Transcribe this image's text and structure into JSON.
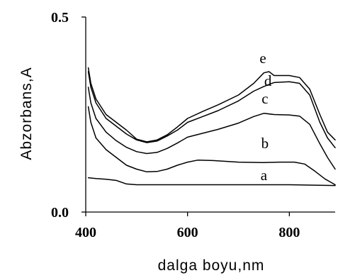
{
  "chart_data": {
    "type": "line",
    "title": "",
    "xlabel": "dalga boyu,nm",
    "ylabel": "Abzorbans,A",
    "xlim": [
      400,
      890
    ],
    "ylim": [
      0.0,
      0.5
    ],
    "x_ticks": [
      400,
      600,
      800
    ],
    "x_tick_labels": [
      "400",
      "600",
      "800"
    ],
    "y_ticks": [
      0.0,
      0.5
    ],
    "y_tick_labels": [
      "0.0",
      "0.5"
    ],
    "grid": false,
    "legend": "none",
    "series": [
      {
        "name": "a",
        "label_at": [
          750,
          0.095
        ],
        "points": [
          [
            405,
            0.088
          ],
          [
            420,
            0.086
          ],
          [
            440,
            0.084
          ],
          [
            460,
            0.081
          ],
          [
            480,
            0.072
          ],
          [
            500,
            0.07
          ],
          [
            550,
            0.07
          ],
          [
            600,
            0.07
          ],
          [
            650,
            0.07
          ],
          [
            700,
            0.07
          ],
          [
            750,
            0.07
          ],
          [
            800,
            0.07
          ],
          [
            850,
            0.069
          ],
          [
            890,
            0.068
          ]
        ]
      },
      {
        "name": "b",
        "label_at": [
          752,
          0.176
        ],
        "points": [
          [
            405,
            0.27
          ],
          [
            410,
            0.23
          ],
          [
            420,
            0.19
          ],
          [
            440,
            0.16
          ],
          [
            460,
            0.14
          ],
          [
            480,
            0.12
          ],
          [
            500,
            0.11
          ],
          [
            520,
            0.103
          ],
          [
            540,
            0.104
          ],
          [
            560,
            0.11
          ],
          [
            580,
            0.12
          ],
          [
            600,
            0.128
          ],
          [
            620,
            0.133
          ],
          [
            650,
            0.132
          ],
          [
            700,
            0.128
          ],
          [
            750,
            0.127
          ],
          [
            780,
            0.128
          ],
          [
            810,
            0.128
          ],
          [
            830,
            0.123
          ],
          [
            850,
            0.105
          ],
          [
            870,
            0.085
          ],
          [
            890,
            0.07
          ]
        ]
      },
      {
        "name": "c",
        "label_at": [
          752,
          0.291
        ],
        "points": [
          [
            405,
            0.32
          ],
          [
            410,
            0.28
          ],
          [
            420,
            0.24
          ],
          [
            440,
            0.205
          ],
          [
            460,
            0.183
          ],
          [
            480,
            0.166
          ],
          [
            500,
            0.155
          ],
          [
            520,
            0.15
          ],
          [
            540,
            0.153
          ],
          [
            560,
            0.163
          ],
          [
            580,
            0.177
          ],
          [
            600,
            0.192
          ],
          [
            630,
            0.202
          ],
          [
            660,
            0.212
          ],
          [
            700,
            0.228
          ],
          [
            730,
            0.245
          ],
          [
            750,
            0.253
          ],
          [
            770,
            0.25
          ],
          [
            800,
            0.249
          ],
          [
            820,
            0.246
          ],
          [
            840,
            0.225
          ],
          [
            860,
            0.175
          ],
          [
            875,
            0.14
          ],
          [
            890,
            0.11
          ]
        ]
      },
      {
        "name": "d",
        "label_at": [
          758,
          0.336
        ],
        "points": [
          [
            405,
            0.36
          ],
          [
            410,
            0.32
          ],
          [
            420,
            0.28
          ],
          [
            440,
            0.24
          ],
          [
            460,
            0.22
          ],
          [
            480,
            0.2
          ],
          [
            500,
            0.185
          ],
          [
            520,
            0.178
          ],
          [
            540,
            0.182
          ],
          [
            560,
            0.195
          ],
          [
            580,
            0.21
          ],
          [
            600,
            0.23
          ],
          [
            630,
            0.245
          ],
          [
            660,
            0.26
          ],
          [
            700,
            0.285
          ],
          [
            730,
            0.31
          ],
          [
            750,
            0.322
          ],
          [
            770,
            0.332
          ],
          [
            800,
            0.334
          ],
          [
            820,
            0.33
          ],
          [
            840,
            0.3
          ],
          [
            860,
            0.23
          ],
          [
            875,
            0.19
          ],
          [
            890,
            0.165
          ]
        ]
      },
      {
        "name": "e",
        "label_at": [
          748,
          0.395
        ],
        "points": [
          [
            405,
            0.37
          ],
          [
            410,
            0.33
          ],
          [
            420,
            0.29
          ],
          [
            440,
            0.25
          ],
          [
            460,
            0.23
          ],
          [
            480,
            0.21
          ],
          [
            500,
            0.187
          ],
          [
            520,
            0.18
          ],
          [
            540,
            0.185
          ],
          [
            560,
            0.198
          ],
          [
            580,
            0.218
          ],
          [
            600,
            0.24
          ],
          [
            630,
            0.258
          ],
          [
            660,
            0.275
          ],
          [
            700,
            0.3
          ],
          [
            730,
            0.33
          ],
          [
            750,
            0.357
          ],
          [
            760,
            0.36
          ],
          [
            770,
            0.35
          ],
          [
            800,
            0.35
          ],
          [
            820,
            0.345
          ],
          [
            840,
            0.315
          ],
          [
            860,
            0.25
          ],
          [
            875,
            0.205
          ],
          [
            890,
            0.185
          ]
        ]
      }
    ]
  }
}
